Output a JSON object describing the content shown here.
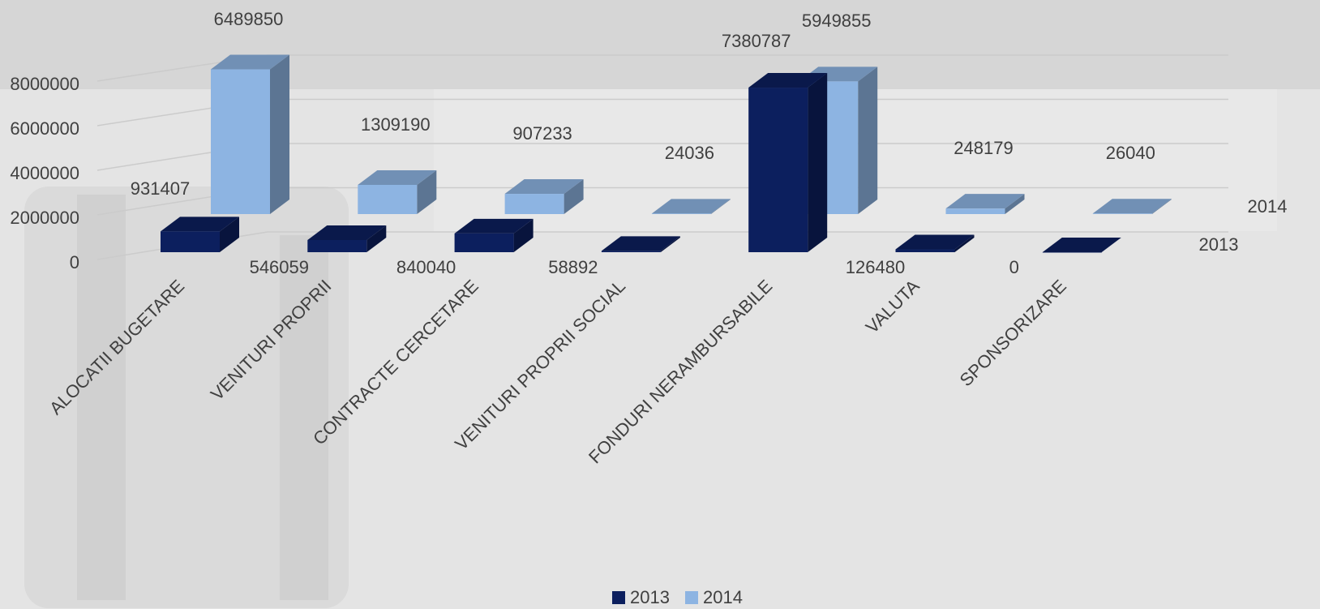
{
  "chart_data": {
    "type": "bar3d",
    "categories": [
      "ALOCATII BUGETARE",
      "VENITURI PROPRII",
      "CONTRACTE CERCETARE",
      "VENITURI PROPRII SOCIAL",
      "FONDURI NERAMBURSABILE",
      "VALUTA",
      "SPONSORIZARE"
    ],
    "series": [
      {
        "name": "2013",
        "color": "#0c1f5e",
        "values": [
          931407,
          546059,
          840040,
          58892,
          7380787,
          126480,
          0
        ]
      },
      {
        "name": "2014",
        "color": "#8db4e2",
        "values": [
          6489850,
          1309190,
          907233,
          24036,
          5949855,
          248179,
          26040
        ]
      }
    ],
    "ylim": [
      0,
      8000000
    ],
    "yticks": [
      0,
      2000000,
      4000000,
      6000000,
      8000000
    ],
    "grid": true,
    "legend": "bottom"
  }
}
